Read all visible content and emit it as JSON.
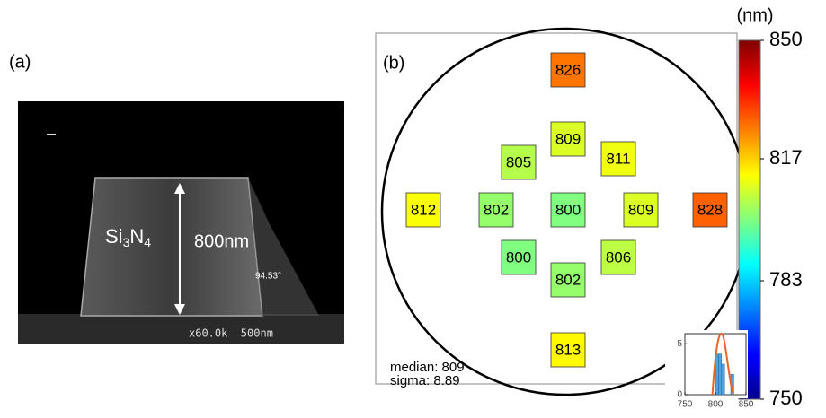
{
  "panel_a": {
    "label": "(a)",
    "material": {
      "base1": "Si",
      "sub1": "3",
      "base2": "N",
      "sub2": "4"
    },
    "height_label": "800nm",
    "angle_label": "94.53°",
    "scale_label": "x60.0k  500nm"
  },
  "panel_b": {
    "label": "(b)",
    "points": [
      {
        "value": 826
      },
      {
        "value": 809
      },
      {
        "value": 805
      },
      {
        "value": 811
      },
      {
        "value": 812
      },
      {
        "value": 802
      },
      {
        "value": 800
      },
      {
        "value": 809
      },
      {
        "value": 828
      },
      {
        "value": 800
      },
      {
        "value": 806
      },
      {
        "value": 802
      },
      {
        "value": 813
      }
    ],
    "median_label": "median: 809",
    "sigma_label": "sigma: 8.89",
    "colorbar": {
      "unit": "(nm)",
      "lim": [
        750,
        850
      ],
      "ticks": [
        750,
        783,
        817,
        850
      ]
    },
    "inset": {
      "bins": [
        795,
        800,
        805,
        810,
        815,
        820,
        825,
        830
      ],
      "counts": [
        0,
        4,
        4,
        3,
        0,
        0,
        2
      ],
      "xlim": [
        750,
        850
      ],
      "ylim": [
        0,
        6
      ],
      "xticks": [
        750,
        800,
        850
      ],
      "yticks": [
        0,
        5
      ]
    }
  }
}
